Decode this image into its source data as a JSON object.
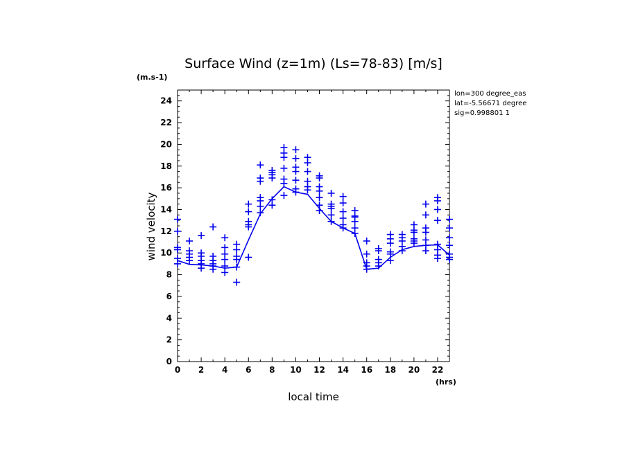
{
  "chart_data": {
    "type": "scatter",
    "title": "Surface Wind (z=1m) (Ls=78-83) [m/s]",
    "ylabel": "wind velocity",
    "xlabel": "local time",
    "y_unit": "(m.s-1)",
    "x_unit": "(hrs)",
    "annotations": [
      "lon=300 degree_eas",
      "lat=-5.56671 degree",
      "sig=0.998801 1"
    ],
    "xlim": [
      0,
      23
    ],
    "ylim": [
      0,
      25
    ],
    "x_ticks": [
      0,
      2,
      4,
      6,
      8,
      10,
      12,
      14,
      16,
      18,
      20,
      22
    ],
    "y_ticks": [
      0,
      2,
      4,
      6,
      8,
      10,
      12,
      14,
      16,
      18,
      20,
      22,
      24
    ],
    "grid": false,
    "colors": {
      "series": "#0000ee",
      "axis": "#000000"
    },
    "series": [
      {
        "type": "line",
        "x": [
          0,
          1,
          2,
          3,
          4,
          5,
          6,
          7,
          8,
          9,
          10,
          11,
          12,
          13,
          14,
          15,
          16,
          17,
          18,
          19,
          20,
          21,
          22,
          23
        ],
        "values": [
          9.3,
          8.95,
          8.9,
          8.8,
          8.6,
          8.7,
          11.2,
          13.6,
          15.0,
          16.1,
          15.6,
          15.4,
          14.1,
          12.9,
          12.3,
          11.8,
          8.5,
          8.6,
          9.6,
          10.3,
          10.6,
          10.7,
          10.75,
          9.8
        ]
      },
      {
        "type": "scatter",
        "marker": "+",
        "points": [
          [
            0,
            13.1
          ],
          [
            0,
            12.0
          ],
          [
            0,
            10.5
          ],
          [
            0,
            10.3
          ],
          [
            0,
            9.5
          ],
          [
            0,
            9.0
          ],
          [
            1,
            11.1
          ],
          [
            1,
            10.2
          ],
          [
            1,
            9.9
          ],
          [
            1,
            9.6
          ],
          [
            1,
            9.3
          ],
          [
            2,
            11.6
          ],
          [
            2,
            10.0
          ],
          [
            2,
            9.7
          ],
          [
            2,
            9.3
          ],
          [
            2,
            9.0
          ],
          [
            2,
            8.6
          ],
          [
            3,
            12.4
          ],
          [
            3,
            9.7
          ],
          [
            3,
            9.3
          ],
          [
            3,
            9.0
          ],
          [
            3,
            8.8
          ],
          [
            3,
            8.5
          ],
          [
            4,
            11.4
          ],
          [
            4,
            10.5
          ],
          [
            4,
            9.9
          ],
          [
            4,
            9.4
          ],
          [
            4,
            8.8
          ],
          [
            4,
            8.2
          ],
          [
            5,
            10.8
          ],
          [
            5,
            10.3
          ],
          [
            5,
            9.7
          ],
          [
            5,
            9.4
          ],
          [
            5,
            8.7
          ],
          [
            5,
            7.3
          ],
          [
            6,
            14.5
          ],
          [
            6,
            13.8
          ],
          [
            6,
            12.9
          ],
          [
            6,
            12.6
          ],
          [
            6,
            12.4
          ],
          [
            6,
            9.6
          ],
          [
            7,
            18.1
          ],
          [
            7,
            16.9
          ],
          [
            7,
            16.6
          ],
          [
            7,
            15.1
          ],
          [
            7,
            14.8
          ],
          [
            7,
            14.3
          ],
          [
            7,
            13.7
          ],
          [
            8,
            17.6
          ],
          [
            8,
            17.4
          ],
          [
            8,
            17.2
          ],
          [
            8,
            16.9
          ],
          [
            8,
            14.9
          ],
          [
            8,
            14.4
          ],
          [
            9,
            19.7
          ],
          [
            9,
            19.2
          ],
          [
            9,
            18.8
          ],
          [
            9,
            17.8
          ],
          [
            9,
            16.8
          ],
          [
            9,
            16.4
          ],
          [
            9,
            15.3
          ],
          [
            10,
            19.5
          ],
          [
            10,
            18.7
          ],
          [
            10,
            17.9
          ],
          [
            10,
            17.5
          ],
          [
            10,
            16.7
          ],
          [
            10,
            15.9
          ],
          [
            10,
            15.6
          ],
          [
            11,
            18.8
          ],
          [
            11,
            18.3
          ],
          [
            11,
            17.5
          ],
          [
            11,
            16.6
          ],
          [
            11,
            16.1
          ],
          [
            11,
            15.8
          ],
          [
            12,
            17.1
          ],
          [
            12,
            16.9
          ],
          [
            12,
            16.1
          ],
          [
            12,
            15.7
          ],
          [
            12,
            15.1
          ],
          [
            12,
            14.4
          ],
          [
            12,
            13.9
          ],
          [
            13,
            15.5
          ],
          [
            13,
            14.5
          ],
          [
            13,
            14.3
          ],
          [
            13,
            14.1
          ],
          [
            13,
            13.5
          ],
          [
            13,
            12.9
          ],
          [
            14,
            15.2
          ],
          [
            14,
            14.6
          ],
          [
            14,
            13.8
          ],
          [
            14,
            13.2
          ],
          [
            14,
            12.6
          ],
          [
            14,
            12.3
          ],
          [
            15,
            13.9
          ],
          [
            15,
            13.4
          ],
          [
            15,
            13.3
          ],
          [
            15,
            12.9
          ],
          [
            15,
            12.3
          ],
          [
            15,
            11.8
          ],
          [
            16,
            11.1
          ],
          [
            16,
            9.9
          ],
          [
            16,
            9.1
          ],
          [
            16,
            8.8
          ],
          [
            16,
            8.5
          ],
          [
            17,
            10.4
          ],
          [
            17,
            10.2
          ],
          [
            17,
            9.4
          ],
          [
            17,
            9.1
          ],
          [
            17,
            8.8
          ],
          [
            18,
            11.7
          ],
          [
            18,
            11.3
          ],
          [
            18,
            10.9
          ],
          [
            18,
            10.1
          ],
          [
            18,
            9.9
          ],
          [
            18,
            9.3
          ],
          [
            19,
            11.7
          ],
          [
            19,
            11.4
          ],
          [
            19,
            11.1
          ],
          [
            19,
            10.6
          ],
          [
            19,
            10.2
          ],
          [
            20,
            12.6
          ],
          [
            20,
            12.1
          ],
          [
            20,
            11.9
          ],
          [
            20,
            11.3
          ],
          [
            20,
            11.1
          ],
          [
            20,
            10.9
          ],
          [
            21,
            14.5
          ],
          [
            21,
            13.5
          ],
          [
            21,
            12.3
          ],
          [
            21,
            11.9
          ],
          [
            21,
            11.2
          ],
          [
            21,
            10.7
          ],
          [
            21,
            10.2
          ],
          [
            22,
            15.1
          ],
          [
            22,
            14.8
          ],
          [
            22,
            14.0
          ],
          [
            22,
            13.0
          ],
          [
            22,
            10.8
          ],
          [
            22,
            10.3
          ],
          [
            22,
            9.8
          ],
          [
            22,
            9.5
          ],
          [
            23,
            13.1
          ],
          [
            23,
            12.3
          ],
          [
            23,
            11.4
          ],
          [
            23,
            10.7
          ],
          [
            23,
            9.9
          ],
          [
            23,
            9.6
          ],
          [
            23,
            9.4
          ]
        ]
      }
    ]
  }
}
